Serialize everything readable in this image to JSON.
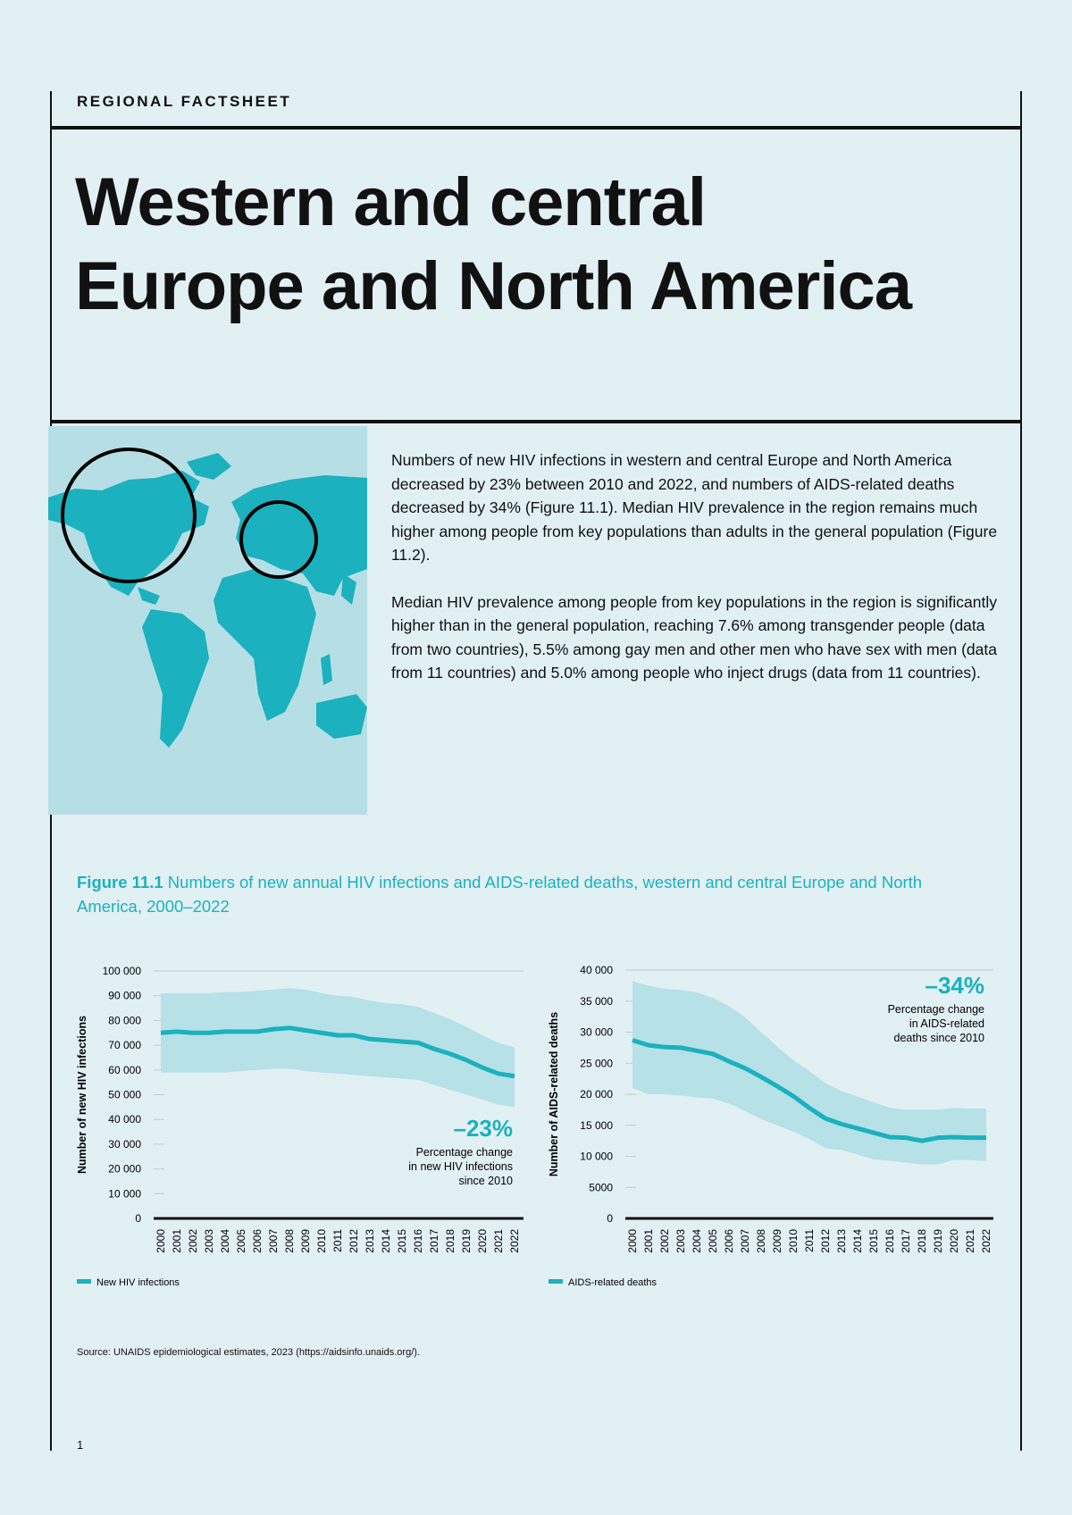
{
  "header": {
    "kicker": "REGIONAL FACTSHEET",
    "title_line1": "Western and central",
    "title_line2": "Europe and North America"
  },
  "colors": {
    "accent": "#1bb1be",
    "band": "#b6e1e6",
    "background": "#e1f0f3",
    "map_land": "#1bb1be",
    "map_water": "#b6dfe5"
  },
  "map": {
    "icon": "world-map-icon",
    "highlights": [
      "North America",
      "Western and central Europe"
    ]
  },
  "intro": {
    "p1": "Numbers of new HIV infections in western and central Europe and North America decreased by 23% between 2010 and 2022, and numbers of AIDS-related deaths decreased by 34% (Figure 11.1). Median HIV prevalence in the region remains much higher among people from key populations than adults in the general population (Figure 11.2).",
    "p2": "Median HIV prevalence among people from key populations in the region is significantly higher than in the general population, reaching 7.6% among transgender people (data from two countries), 5.5% among gay men and other men who have sex with men (data from 11 countries) and 5.0% among people who inject drugs (data from 11 countries)."
  },
  "figure": {
    "label": "Figure 11.1",
    "caption": " Numbers of new annual HIV infections and AIDS-related deaths, western and central Europe and North America, 2000–2022"
  },
  "chart_data": [
    {
      "type": "area",
      "ylabel": "Number of new HIV infections",
      "ylim": [
        0,
        100000
      ],
      "yticks": [
        "0",
        "10 000",
        "20 000",
        "30 000",
        "40 000",
        "50 000",
        "60 000",
        "70 000",
        "80 000",
        "90 000",
        "100 000"
      ],
      "x": [
        "2000",
        "2001",
        "2002",
        "2003",
        "2004",
        "2005",
        "2006",
        "2007",
        "2008",
        "2009",
        "2010",
        "2011",
        "2012",
        "2013",
        "2014",
        "2015",
        "2016",
        "2017",
        "2018",
        "2019",
        "2020",
        "2021",
        "2022"
      ],
      "series": [
        {
          "name": "New HIV infections",
          "values": [
            75000,
            75500,
            75000,
            75000,
            75500,
            75500,
            75500,
            76500,
            77000,
            76000,
            75000,
            74000,
            74000,
            72500,
            72000,
            71500,
            71000,
            68500,
            66500,
            64000,
            61000,
            58500,
            57500
          ],
          "lower": [
            59000,
            59000,
            59000,
            59000,
            59000,
            59500,
            60000,
            60500,
            60500,
            59500,
            59000,
            58500,
            58000,
            57500,
            57000,
            56500,
            56000,
            54000,
            52000,
            50000,
            48000,
            46000,
            45000
          ],
          "upper": [
            91000,
            91000,
            91000,
            91000,
            91500,
            91500,
            92000,
            92500,
            93000,
            92500,
            91000,
            90000,
            89500,
            88000,
            87000,
            86500,
            85500,
            83000,
            80500,
            77500,
            74000,
            71000,
            69000
          ]
        }
      ],
      "annotation": {
        "value": "–23%",
        "text": [
          "Percentage change",
          "in new HIV infections",
          "since 2010"
        ]
      },
      "grid": true,
      "legend": "bottom-left"
    },
    {
      "type": "area",
      "ylabel": "Number of AIDS-related deaths",
      "ylim": [
        0,
        40000
      ],
      "yticks": [
        "0",
        "5000",
        "10 000",
        "15 000",
        "20 000",
        "25 000",
        "30 000",
        "35 000",
        "40 000"
      ],
      "x": [
        "2000",
        "2001",
        "2002",
        "2003",
        "2004",
        "2005",
        "2006",
        "2007",
        "2008",
        "2009",
        "2010",
        "2011",
        "2012",
        "2013",
        "2014",
        "2015",
        "2016",
        "2017",
        "2018",
        "2019",
        "2020",
        "2021",
        "2022"
      ],
      "series": [
        {
          "name": "AIDS-related deaths",
          "values": [
            28700,
            27900,
            27600,
            27500,
            27000,
            26500,
            25300,
            24200,
            22800,
            21300,
            19700,
            17800,
            16100,
            15200,
            14500,
            13800,
            13100,
            13000,
            12500,
            13000,
            13100,
            13000,
            13000
          ],
          "lower": [
            21000,
            20000,
            20000,
            19800,
            19500,
            19300,
            18500,
            17300,
            16000,
            15000,
            14000,
            12800,
            11300,
            11000,
            10300,
            9500,
            9300,
            9000,
            8700,
            8700,
            9400,
            9400,
            9200
          ],
          "upper": [
            38200,
            37500,
            37000,
            36800,
            36400,
            35500,
            34200,
            32400,
            30000,
            27700,
            25500,
            23700,
            21800,
            20500,
            19600,
            18700,
            17800,
            17500,
            17500,
            17500,
            17800,
            17700,
            17700
          ]
        }
      ],
      "annotation": {
        "value": "–34%",
        "text": [
          "Percentage change",
          "in AIDS-related",
          "deaths since 2010"
        ]
      },
      "grid": true,
      "legend": "bottom-left"
    }
  ],
  "source": "Source: UNAIDS epidemiological estimates, 2023 (https://aidsinfo.unaids.org/).",
  "page_number": "1"
}
